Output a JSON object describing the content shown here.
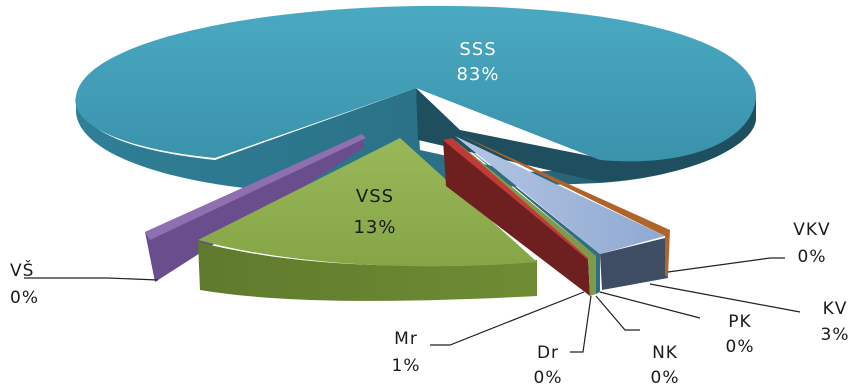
{
  "chart_data": {
    "type": "pie",
    "style": "3d-exploded",
    "categories": [
      "SSS",
      "VSS",
      "VŠ",
      "Mr",
      "Dr",
      "NK",
      "PK",
      "KV",
      "VKV"
    ],
    "values": [
      83,
      13,
      0,
      1,
      0,
      0,
      0,
      3,
      0
    ],
    "labels": [
      {
        "name": "SSS",
        "pct": "83%"
      },
      {
        "name": "VSS",
        "pct": "13%"
      },
      {
        "name": "VŠ",
        "pct": "0%"
      },
      {
        "name": "Mr",
        "pct": "1%"
      },
      {
        "name": "Dr",
        "pct": "0%"
      },
      {
        "name": "NK",
        "pct": "0%"
      },
      {
        "name": "PK",
        "pct": "0%"
      },
      {
        "name": "KV",
        "pct": "3%"
      },
      {
        "name": "VKV",
        "pct": "0%"
      }
    ],
    "colors": {
      "SSS": "#3a96b0",
      "VSS": "#8aa94a",
      "VŠ": "#7b5a9b",
      "Mr": "#a93a3a",
      "Dr": "#6b8b3a",
      "NK": "#3a7a8a",
      "PK": "#c8d0b0",
      "KV": "#9db3d8",
      "VKV": "#c07840"
    },
    "legend": "none"
  }
}
